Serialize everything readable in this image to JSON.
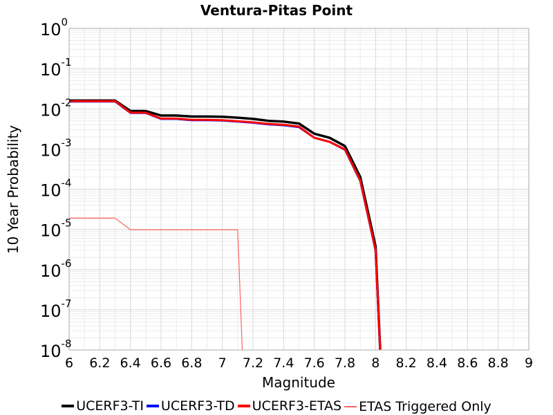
{
  "chart_data": {
    "type": "line",
    "title": "Ventura-Pitas Point",
    "xlabel": "Magnitude",
    "ylabel": "10 Year Probability",
    "xlim": [
      6,
      9
    ],
    "ylim": [
      1e-08,
      1
    ],
    "y_scale": "log",
    "grid": true,
    "legend_position": "bottom",
    "x_ticks": [
      "6",
      "6.2",
      "6.4",
      "6.6",
      "6.8",
      "7",
      "7.2",
      "7.4",
      "7.6",
      "7.8",
      "8",
      "8.2",
      "8.4",
      "8.6",
      "8.8",
      "9"
    ],
    "y_ticks": [
      {
        "base": "10",
        "exp": "0"
      },
      {
        "base": "10",
        "exp": "-1"
      },
      {
        "base": "10",
        "exp": "-2"
      },
      {
        "base": "10",
        "exp": "-3"
      },
      {
        "base": "10",
        "exp": "-4"
      },
      {
        "base": "10",
        "exp": "-5"
      },
      {
        "base": "10",
        "exp": "-6"
      },
      {
        "base": "10",
        "exp": "-7"
      },
      {
        "base": "10",
        "exp": "-8"
      }
    ],
    "series": [
      {
        "name": "UCERF3-TI",
        "color": "#000000",
        "x": [
          6.0,
          6.1,
          6.2,
          6.3,
          6.4,
          6.5,
          6.6,
          6.7,
          6.8,
          6.9,
          7.0,
          7.1,
          7.2,
          7.3,
          7.4,
          7.5,
          7.6,
          7.7,
          7.8,
          7.9,
          8.0,
          8.03
        ],
        "values": [
          0.016,
          0.016,
          0.016,
          0.016,
          0.0088,
          0.0088,
          0.0068,
          0.0068,
          0.0064,
          0.0064,
          0.0063,
          0.006,
          0.0056,
          0.005,
          0.0048,
          0.0043,
          0.0024,
          0.0019,
          0.00118,
          0.0002,
          3.8e-06,
          1e-08
        ]
      },
      {
        "name": "UCERF3-TD",
        "color": "#0000ff",
        "x": [
          6.0,
          6.1,
          6.2,
          6.3,
          6.4,
          6.5,
          6.6,
          6.7,
          6.8,
          6.9,
          7.0,
          7.1,
          7.2,
          7.3,
          7.4,
          7.5,
          7.6,
          7.7,
          7.8,
          7.9,
          8.0,
          8.03
        ],
        "values": [
          0.0152,
          0.0152,
          0.0152,
          0.0152,
          0.0079,
          0.0079,
          0.0056,
          0.0056,
          0.0052,
          0.0052,
          0.0051,
          0.0048,
          0.0045,
          0.0041,
          0.0039,
          0.0035,
          0.0019,
          0.0015,
          0.00096,
          0.00016,
          3e-06,
          1e-08
        ]
      },
      {
        "name": "UCERF3-ETAS",
        "color": "#ff0000",
        "x": [
          6.0,
          6.1,
          6.2,
          6.3,
          6.4,
          6.5,
          6.6,
          6.7,
          6.8,
          6.9,
          7.0,
          7.1,
          7.2,
          7.3,
          7.4,
          7.5,
          7.6,
          7.7,
          7.8,
          7.9,
          8.0,
          8.03
        ],
        "values": [
          0.0155,
          0.0155,
          0.0155,
          0.0155,
          0.008,
          0.008,
          0.0057,
          0.0057,
          0.0053,
          0.0053,
          0.0052,
          0.0049,
          0.0046,
          0.0042,
          0.004,
          0.0036,
          0.0019,
          0.0015,
          0.00098,
          0.000165,
          3.1e-06,
          1e-08
        ]
      },
      {
        "name": "ETAS Triggered Only",
        "color": "#ff6060",
        "x": [
          6.0,
          6.1,
          6.2,
          6.3,
          6.4,
          6.5,
          6.6,
          6.7,
          6.8,
          6.9,
          7.0,
          7.1,
          7.13
        ],
        "values": [
          1.9e-05,
          1.9e-05,
          1.9e-05,
          1.9e-05,
          9.8e-06,
          9.8e-06,
          9.8e-06,
          9.8e-06,
          9.8e-06,
          9.8e-06,
          9.8e-06,
          9.8e-06,
          1e-08
        ]
      }
    ]
  }
}
